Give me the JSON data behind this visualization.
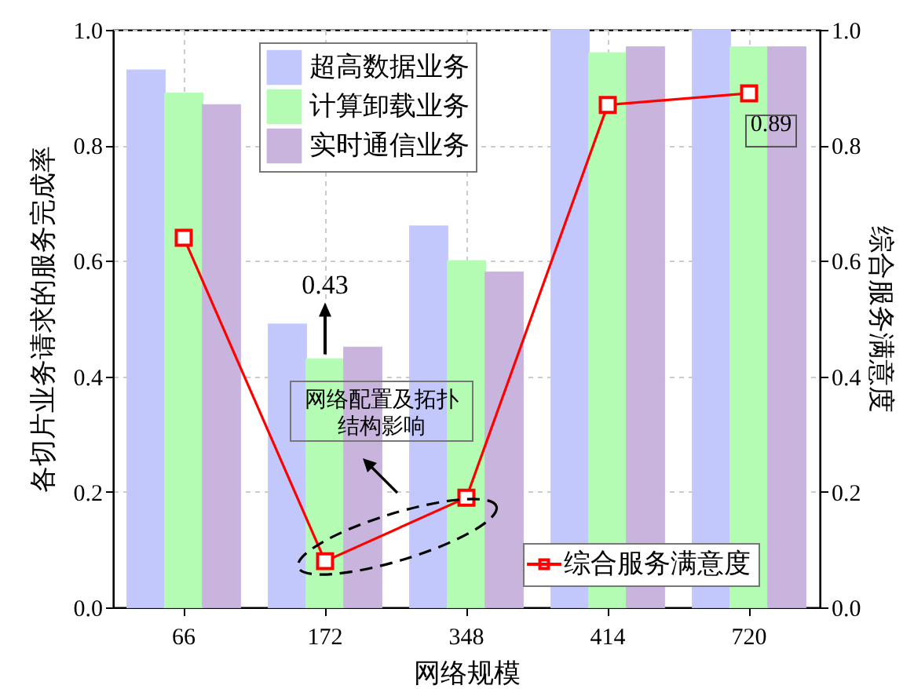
{
  "chart_data": {
    "type": "bar",
    "xlabel": "网络规模",
    "ylabel": "各切片业务请求的服务完成率",
    "y2label": "综合服务满意度",
    "categories": [
      "66",
      "172",
      "348",
      "414",
      "720"
    ],
    "series": [
      {
        "name": "超高数据业务",
        "color": "#c3c8fc",
        "values": [
          0.93,
          0.49,
          0.66,
          1.0,
          1.0
        ]
      },
      {
        "name": "计算卸载业务",
        "color": "#b4fcb4",
        "values": [
          0.89,
          0.43,
          0.6,
          0.96,
          0.97
        ]
      },
      {
        "name": "实时通信业务",
        "color": "#c8b4dc",
        "values": [
          0.87,
          0.45,
          0.58,
          0.97,
          0.97
        ]
      },
      {
        "name": "综合服务满意度",
        "type": "line",
        "axis": "y2",
        "color": "#ff0000",
        "values": [
          0.64,
          0.08,
          0.19,
          0.87,
          0.89
        ],
        "value_labels": [
          null,
          null,
          null,
          null,
          "0.89"
        ]
      }
    ],
    "ylim": [
      0,
      1
    ],
    "yticks": [
      {
        "value": 0,
        "label": "0.0"
      },
      0.2,
      0.4,
      0.6,
      0.8,
      {
        "value": 1,
        "label": "1.0"
      }
    ],
    "y2lim": [
      0,
      1
    ],
    "y2ticks": [
      {
        "value": 0,
        "label": "0.0"
      },
      0.2,
      0.4,
      0.6,
      0.8,
      {
        "value": 1,
        "label": "1.0"
      }
    ],
    "annotations": [
      {
        "text": "0.43",
        "x": "172",
        "y": 0.43
      },
      "网络配置及拓扑结构影响"
    ],
    "grid": true,
    "legend": "top",
    "marker": "square"
  }
}
